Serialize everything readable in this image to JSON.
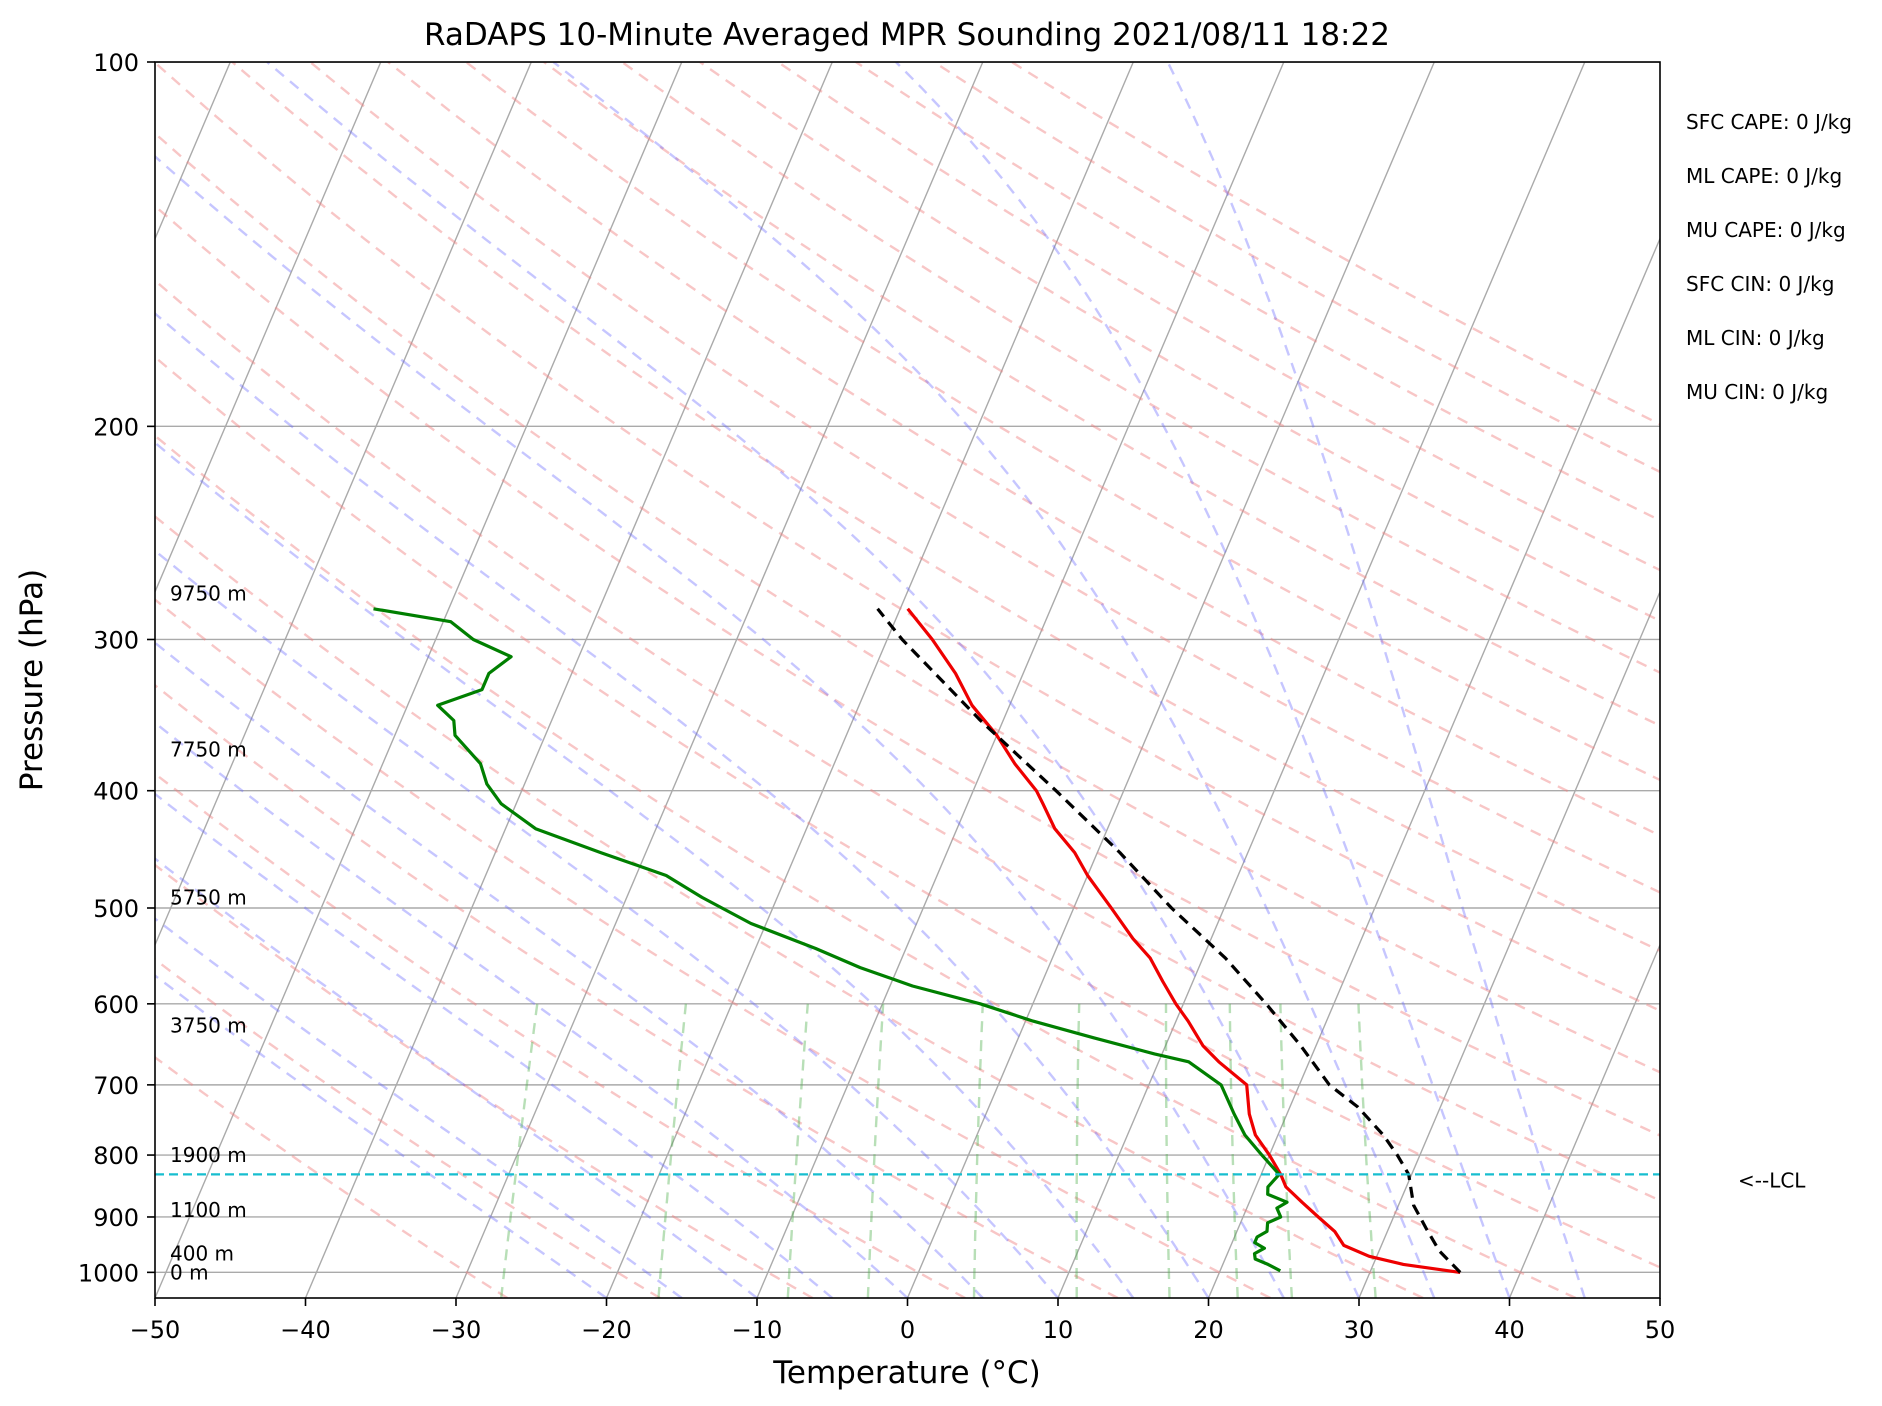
{
  "chart_data": {
    "type": "line",
    "title": "RaDAPS 10-Minute Averaged MPR Sounding 2021/08/11 18:22",
    "xlabel": "Temperature (°C)",
    "ylabel": "Pressure (hPa)",
    "xlim": [
      -50,
      50
    ],
    "ylim": [
      1050,
      100
    ],
    "y_scale": "log",
    "x_ticks": [
      "−50",
      "−40",
      "−30",
      "−20",
      "−10",
      "0",
      "10",
      "20",
      "30",
      "40",
      "50"
    ],
    "y_ticks": [
      {
        "p": 100,
        "label": "100"
      },
      {
        "p": 200,
        "label": "200"
      },
      {
        "p": 300,
        "label": "300"
      },
      {
        "p": 400,
        "label": "400"
      },
      {
        "p": 500,
        "label": "500"
      },
      {
        "p": 600,
        "label": "600"
      },
      {
        "p": 700,
        "label": "700"
      },
      {
        "p": 800,
        "label": "800"
      },
      {
        "p": 900,
        "label": "900"
      },
      {
        "p": 1000,
        "label": "1000"
      }
    ],
    "height_labels": [
      {
        "p": 275,
        "label": "9750 m"
      },
      {
        "p": 370,
        "label": "7750 m"
      },
      {
        "p": 490,
        "label": "5750 m"
      },
      {
        "p": 625,
        "label": "3750 m"
      },
      {
        "p": 800,
        "label": "1900 m"
      },
      {
        "p": 888,
        "label": "1100 m"
      },
      {
        "p": 965,
        "label": "400 m"
      },
      {
        "p": 1000,
        "label": "0 m"
      }
    ],
    "stats": [
      "SFC CAPE: 0 J/kg",
      "ML CAPE: 0 J/kg",
      "MU CAPE: 0 J/kg",
      "SFC CIN: 0 J/kg",
      "ML CIN: 0 J/kg",
      "MU CIN: 0 J/kg"
    ],
    "lcl": {
      "p": 830,
      "label": "<--LCL",
      "color": "#17becf"
    },
    "series": [
      {
        "color": "#ee0000",
        "points": [
          [
            1000,
            36.0
          ],
          [
            985,
            32.0
          ],
          [
            970,
            29.5
          ],
          [
            950,
            27.5
          ],
          [
            925,
            26.5
          ],
          [
            900,
            25.0
          ],
          [
            875,
            23.5
          ],
          [
            850,
            22.0
          ],
          [
            830,
            21.3
          ],
          [
            800,
            20.0
          ],
          [
            770,
            18.5
          ],
          [
            740,
            17.5
          ],
          [
            700,
            16.5
          ],
          [
            670,
            14.0
          ],
          [
            650,
            12.5
          ],
          [
            620,
            10.8
          ],
          [
            600,
            9.5
          ],
          [
            575,
            8.0
          ],
          [
            550,
            6.5
          ],
          [
            530,
            4.8
          ],
          [
            500,
            2.5
          ],
          [
            470,
            0.0
          ],
          [
            450,
            -1.5
          ],
          [
            430,
            -3.5
          ],
          [
            410,
            -5.0
          ],
          [
            400,
            -5.8
          ],
          [
            380,
            -8.0
          ],
          [
            360,
            -10.0
          ],
          [
            340,
            -12.5
          ],
          [
            320,
            -14.5
          ],
          [
            300,
            -17.0
          ],
          [
            283,
            -19.5
          ]
        ]
      },
      {
        "color": "#007f00",
        "points": [
          [
            997,
            24.0
          ],
          [
            985,
            23.0
          ],
          [
            975,
            22.0
          ],
          [
            965,
            21.8
          ],
          [
            955,
            22.3
          ],
          [
            945,
            21.5
          ],
          [
            935,
            21.5
          ],
          [
            925,
            22.0
          ],
          [
            910,
            21.8
          ],
          [
            900,
            22.5
          ],
          [
            885,
            22.0
          ],
          [
            875,
            22.5
          ],
          [
            862,
            21.0
          ],
          [
            850,
            20.8
          ],
          [
            840,
            21.0
          ],
          [
            830,
            21.2
          ],
          [
            800,
            19.5
          ],
          [
            770,
            17.8
          ],
          [
            740,
            16.5
          ],
          [
            700,
            14.8
          ],
          [
            670,
            12.0
          ],
          [
            660,
            9.5
          ],
          [
            640,
            5.0
          ],
          [
            620,
            0.5
          ],
          [
            600,
            -3.5
          ],
          [
            580,
            -8.5
          ],
          [
            560,
            -12.5
          ],
          [
            540,
            -16.0
          ],
          [
            515,
            -21.0
          ],
          [
            490,
            -25.0
          ],
          [
            470,
            -28.0
          ],
          [
            450,
            -33.0
          ],
          [
            430,
            -38.0
          ],
          [
            410,
            -41.0
          ],
          [
            395,
            -42.5
          ],
          [
            380,
            -43.5
          ],
          [
            360,
            -46.0
          ],
          [
            350,
            -46.5
          ],
          [
            340,
            -48.0
          ],
          [
            330,
            -45.5
          ],
          [
            320,
            -45.5
          ],
          [
            310,
            -44.5
          ],
          [
            300,
            -47.5
          ],
          [
            290,
            -49.5
          ],
          [
            283,
            -55.0
          ]
        ]
      },
      {
        "color": "#000000",
        "dashed": true,
        "points": [
          [
            1000,
            36.0
          ],
          [
            960,
            34.0
          ],
          [
            920,
            32.5
          ],
          [
            880,
            31.0
          ],
          [
            830,
            29.8
          ],
          [
            800,
            28.5
          ],
          [
            770,
            27.0
          ],
          [
            730,
            24.5
          ],
          [
            700,
            22.0
          ],
          [
            650,
            19.0
          ],
          [
            600,
            15.5
          ],
          [
            550,
            11.5
          ],
          [
            500,
            6.5
          ],
          [
            450,
            1.5
          ],
          [
            400,
            -4.5
          ],
          [
            350,
            -11.5
          ],
          [
            300,
            -19.0
          ],
          [
            283,
            -21.5
          ]
        ]
      }
    ]
  }
}
